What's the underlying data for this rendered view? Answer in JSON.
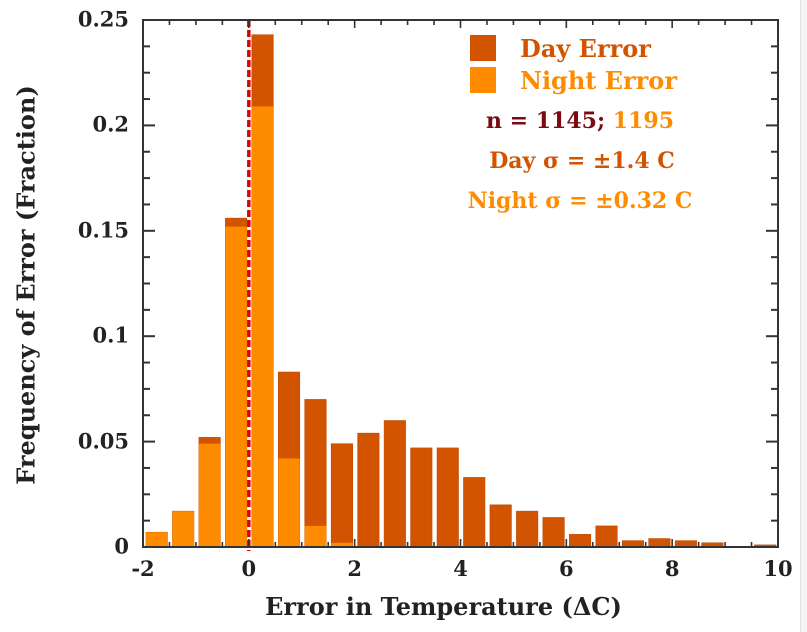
{
  "chart_data": {
    "type": "bar",
    "stacked_overlay": true,
    "title": "",
    "xlabel": "Error in Temperature (ΔC)",
    "ylabel": "Frequency of Error (Fraction)",
    "xlim": [
      -2,
      10
    ],
    "ylim": [
      0,
      0.25
    ],
    "bin_width": 0.5,
    "x_ticks": [
      "-2",
      "0",
      "2",
      "4",
      "6",
      "8",
      "10"
    ],
    "y_ticks": [
      "0",
      "0.05",
      "0.1",
      "0.15",
      "0.2",
      "0.25"
    ],
    "bin_starts": [
      -2,
      -1.5,
      -1,
      -0.5,
      0,
      0.5,
      1,
      1.5,
      2,
      2.5,
      3,
      3.5,
      4,
      4.5,
      5,
      5.5,
      6,
      6.5,
      7,
      7.5,
      8,
      8.5,
      9,
      9.5
    ],
    "series": [
      {
        "name": "Day Error",
        "color": "#d35400",
        "values": [
          0.007,
          0.017,
          0.052,
          0.156,
          0.243,
          0.083,
          0.07,
          0.049,
          0.054,
          0.06,
          0.047,
          0.047,
          0.033,
          0.02,
          0.017,
          0.014,
          0.006,
          0.01,
          0.003,
          0.004,
          0.003,
          0.002,
          0.0,
          0.001
        ]
      },
      {
        "name": "Night Error",
        "color": "#ff8c00",
        "values": [
          0.007,
          0.017,
          0.049,
          0.152,
          0.209,
          0.042,
          0.01,
          0.002,
          0,
          0,
          0,
          0,
          0,
          0,
          0,
          0,
          0,
          0,
          0,
          0,
          0,
          0,
          0,
          0
        ]
      }
    ],
    "reference_line": {
      "x": 0,
      "style": "dashed",
      "color": "#e00000"
    },
    "legend_position": "upper right",
    "grid": false,
    "annotations": [
      {
        "text_day": "n = 1145;",
        "text_night": "1195"
      },
      {
        "text": "Day σ = ±1.4 C"
      },
      {
        "text": "Night σ = ±0.32 C"
      }
    ]
  },
  "legend": {
    "day_label": "Day Error",
    "night_label": "Night Error"
  },
  "stats": {
    "n_day": "n = 1145;",
    "n_night": "1195",
    "day_sigma": "Day σ = ±1.4 C",
    "night_sigma": "Night σ = ±0.32 C"
  },
  "colors": {
    "day": "#d35400",
    "night": "#ff8c00",
    "n_day_text": "#7b0a12",
    "zero_line": "#e00000",
    "axis": "#333333"
  }
}
